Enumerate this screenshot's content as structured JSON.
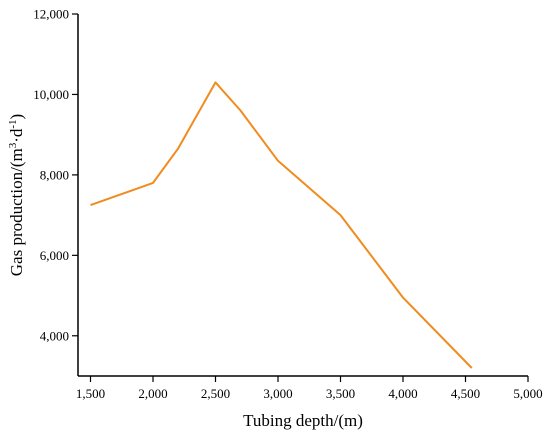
{
  "chart_data": {
    "type": "line",
    "x": [
      1500,
      2000,
      2200,
      2500,
      2700,
      3000,
      3500,
      4000,
      4550
    ],
    "series": [
      {
        "values": [
          7250,
          7800,
          8650,
          10300,
          9600,
          8350,
          7000,
          4950,
          3200
        ],
        "color": "#F08C1E"
      }
    ],
    "xlabel": "Tubing depth/(m)",
    "ylabel_main": "Gas production/(m",
    "ylabel_sup1": "3",
    "ylabel_mid": "·d",
    "ylabel_sup2": "-1",
    "ylabel_end": ")",
    "xlim": [
      1400,
      5000
    ],
    "ylim": [
      3000,
      12000
    ],
    "xticks": [
      1500,
      2000,
      2500,
      3000,
      3500,
      4000,
      4500,
      5000
    ],
    "xtick_labels": [
      "1,500",
      "2,000",
      "2,500",
      "3,000",
      "3,500",
      "4,000",
      "4,500",
      "5,000"
    ],
    "yticks": [
      4000,
      6000,
      8000,
      10000,
      12000
    ],
    "ytick_labels": [
      "4,000",
      "6,000",
      "8,000",
      "10,000",
      "12,000"
    ],
    "grid": false,
    "legend": "none"
  }
}
